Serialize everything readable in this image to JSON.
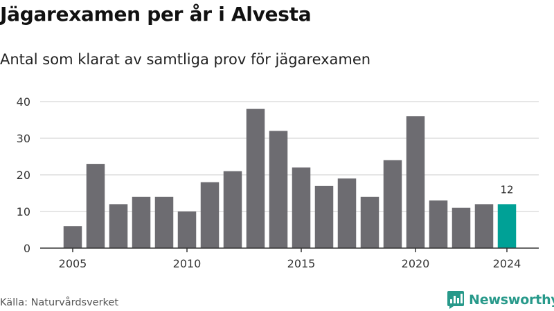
{
  "header": {
    "title": "Jägarexamen per år i Alvesta",
    "subtitle": "Antal som klarat av samtliga prov för jägarexamen"
  },
  "footer": {
    "source": "Källa: Naturvårdsverket",
    "brand": "Newsworthy",
    "brand_icon": "bar-chart-speech-bubble-icon"
  },
  "colors": {
    "bar": "#6d6c71",
    "highlight": "#00a196",
    "grid": "#dddddd",
    "brand": "#27998a"
  },
  "chart_data": {
    "type": "bar",
    "title": "Jägarexamen per år i Alvesta",
    "subtitle": "Antal som klarat av samtliga prov för jägarexamen",
    "xlabel": "",
    "ylabel": "",
    "categories": [
      2005,
      2006,
      2007,
      2008,
      2009,
      2010,
      2011,
      2012,
      2013,
      2014,
      2015,
      2016,
      2017,
      2018,
      2019,
      2020,
      2021,
      2022,
      2023,
      2024
    ],
    "values": [
      6,
      23,
      12,
      14,
      14,
      10,
      18,
      21,
      38,
      32,
      22,
      17,
      19,
      14,
      24,
      36,
      13,
      11,
      12,
      12
    ],
    "x_tick_labels": [
      "2005",
      "2010",
      "2015",
      "2020",
      "2024"
    ],
    "y_ticks": [
      0,
      10,
      20,
      30,
      40
    ],
    "ylim": [
      0,
      40
    ],
    "grid": true,
    "highlight": {
      "category": 2024,
      "label": "12"
    }
  }
}
